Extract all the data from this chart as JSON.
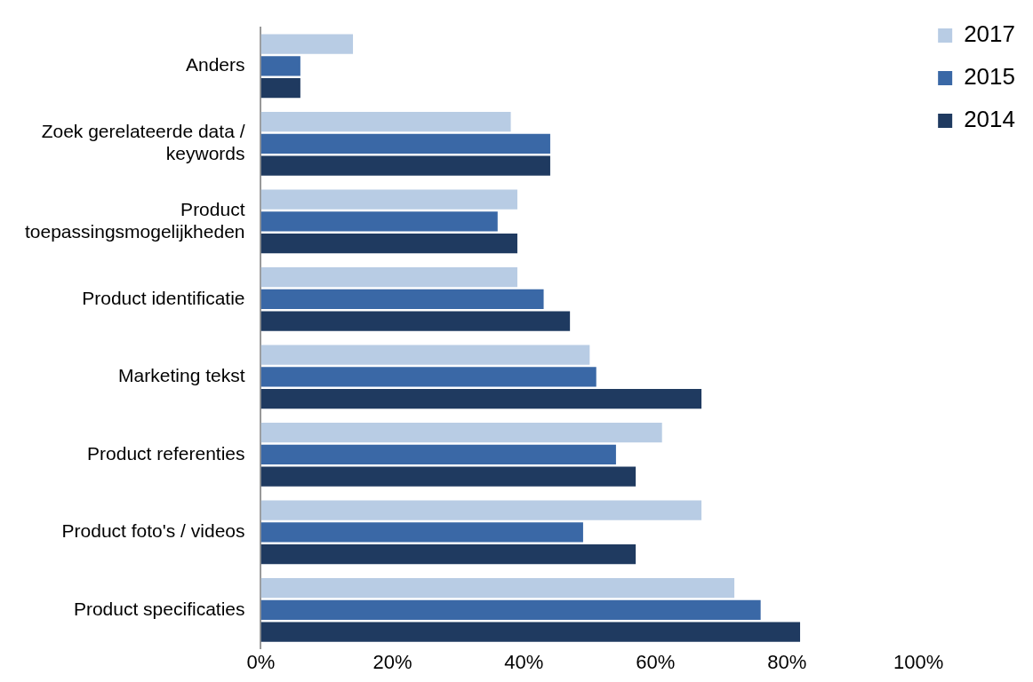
{
  "chart_data": {
    "type": "bar",
    "orientation": "horizontal",
    "categories": [
      "Anders",
      "Zoek gerelateerde data / keywords",
      "Product toepassingsmogelijkheden",
      "Product identificatie",
      "Marketing tekst",
      "Product referenties",
      "Product foto's / videos",
      "Product specificaties"
    ],
    "series": [
      {
        "name": "2017",
        "color": "#b8cce4",
        "values": [
          14,
          38,
          39,
          39,
          50,
          61,
          67,
          72
        ]
      },
      {
        "name": "2015",
        "color": "#3a68a6",
        "values": [
          6,
          44,
          36,
          43,
          51,
          54,
          49,
          76
        ]
      },
      {
        "name": "2014",
        "color": "#1f3a60",
        "values": [
          6,
          44,
          39,
          47,
          67,
          57,
          57,
          82
        ]
      }
    ],
    "xlim": [
      0,
      100
    ],
    "xticks": [
      {
        "value": 0,
        "label": "0%"
      },
      {
        "value": 20,
        "label": "20%"
      },
      {
        "value": 40,
        "label": "40%"
      },
      {
        "value": 60,
        "label": "60%"
      },
      {
        "value": 80,
        "label": "80%"
      },
      {
        "value": 100,
        "label": "100%"
      }
    ],
    "grid": false,
    "legend": "top right"
  }
}
